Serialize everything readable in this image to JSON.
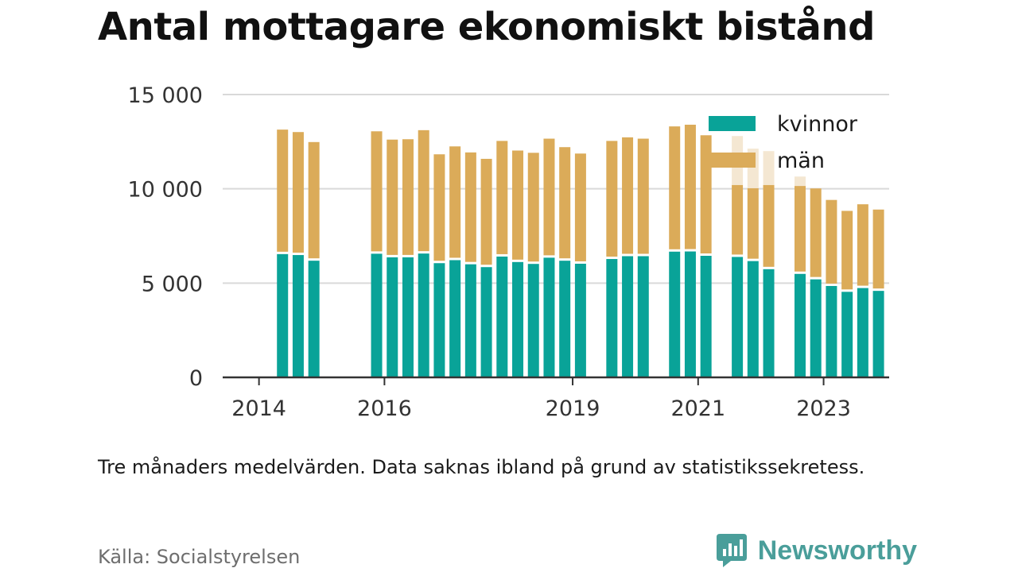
{
  "header": {
    "title": "Antal mottagare ekonomiskt bistånd"
  },
  "footer": {
    "note": "Tre månaders medelvärden. Data saknas ibland på grund av statistikssekretess.",
    "source": "Källa: Socialstyrelsen",
    "brand": "Newsworthy"
  },
  "colors": {
    "kvinnor": "#09a398",
    "man": "#dbab59",
    "faded": "#f4e7d2",
    "grid": "#d9d9d9",
    "axis": "#333333",
    "brand": "#4a9e9a"
  },
  "chart_data": {
    "type": "bar",
    "stacked": true,
    "ylim": [
      0,
      15000
    ],
    "y_ticks": [
      0,
      5000,
      10000,
      15000
    ],
    "y_tick_labels": [
      "0",
      "5 000",
      "10 000",
      "15 000"
    ],
    "x_ticks": [
      {
        "label": "2014",
        "year": 2014
      },
      {
        "label": "2016",
        "year": 2016
      },
      {
        "label": "2019",
        "year": 2019
      },
      {
        "label": "2021",
        "year": 2021
      },
      {
        "label": "2023",
        "year": 2023
      }
    ],
    "legend": {
      "position": "top-right",
      "entries": [
        "kvinnor",
        "män"
      ]
    },
    "grid": true,
    "periods": [
      "2014Q2",
      "2014Q3",
      "2014Q4",
      "2015Q4",
      "2016Q1",
      "2016Q2",
      "2016Q3",
      "2016Q4",
      "2017Q1",
      "2017Q2",
      "2017Q3",
      "2017Q4",
      "2018Q1",
      "2018Q2",
      "2018Q3",
      "2018Q4",
      "2019Q1",
      "2019Q3",
      "2019Q4",
      "2020Q1",
      "2020Q3",
      "2020Q4",
      "2021Q1",
      "2021Q3",
      "2021Q4",
      "2022Q1",
      "2022Q3",
      "2022Q4",
      "2023Q1",
      "2023Q2",
      "2023Q3",
      "2023Q4"
    ],
    "series": [
      {
        "name": "kvinnor",
        "values": [
          6600,
          6550,
          6250,
          6620,
          6430,
          6430,
          6630,
          6120,
          6280,
          6060,
          5910,
          6470,
          6180,
          6080,
          6410,
          6250,
          6090,
          6340,
          6490,
          6490,
          6730,
          6740,
          6510,
          6450,
          6230,
          5800,
          5550,
          5260,
          4910,
          4600,
          4800,
          4650
        ]
      },
      {
        "name": "män",
        "values": [
          6540,
          6460,
          6230,
          6430,
          6180,
          6200,
          6480,
          5710,
          5970,
          5870,
          5680,
          6070,
          5850,
          5830,
          6250,
          5960,
          5780,
          6200,
          6240,
          6170,
          6580,
          6660,
          6330,
          3750,
          3800,
          4400,
          4600,
          4760,
          4500,
          4230,
          4380,
          4250
        ]
      }
    ],
    "faded_top": [
      0,
      0,
      0,
      0,
      0,
      0,
      0,
      0,
      0,
      0,
      0,
      0,
      0,
      0,
      0,
      0,
      0,
      0,
      0,
      0,
      0,
      0,
      0,
      2600,
      2100,
      1800,
      500,
      0,
      0,
      0,
      0,
      0
    ]
  }
}
